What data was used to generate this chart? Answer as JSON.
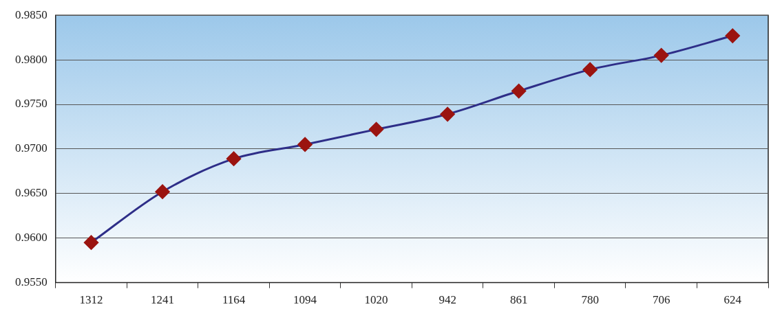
{
  "chart_data": {
    "type": "line",
    "categories": [
      "1312",
      "1241",
      "1164",
      "1094",
      "1020",
      "942",
      "861",
      "780",
      "706",
      "624"
    ],
    "series": [
      {
        "color": "#2e2e88",
        "values": [
          0.9595,
          0.9652,
          0.9689,
          0.9705,
          0.9722,
          0.9739,
          0.9765,
          0.9789,
          0.9805,
          0.9827
        ]
      }
    ],
    "ylim": [
      0.955,
      0.985
    ],
    "yticks": [
      {
        "value": 0.955,
        "label": "0.9550"
      },
      {
        "value": 0.96,
        "label": "0.9600"
      },
      {
        "value": 0.965,
        "label": "0.9650"
      },
      {
        "value": 0.97,
        "label": "0.9700"
      },
      {
        "value": 0.975,
        "label": "0.9750"
      },
      {
        "value": 0.98,
        "label": "0.9800"
      },
      {
        "value": 0.985,
        "label": "0.9850"
      }
    ],
    "grid": "y",
    "marker": "diamond",
    "legend": false,
    "line_style": "solid"
  }
}
